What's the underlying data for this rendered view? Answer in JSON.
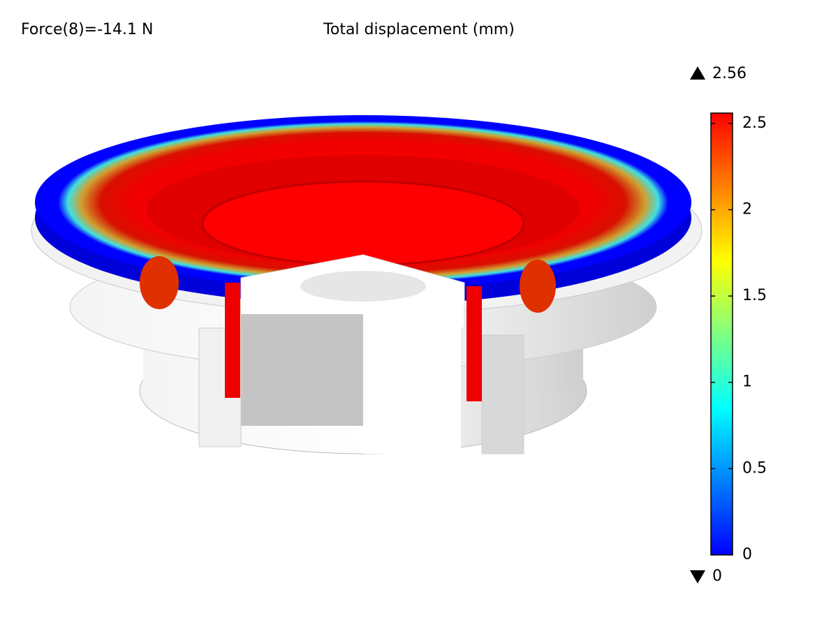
{
  "chart_data": {
    "type": "surface",
    "title": "Total displacement (mm)",
    "annotation": "Force(8)=-14.1 N",
    "colorbar": {
      "min": 0,
      "max": 2.56,
      "ticks": [
        0,
        0.5,
        1,
        1.5,
        2,
        2.5
      ],
      "colors": [
        "#0000ff",
        "#0080ff",
        "#00ffff",
        "#80ff80",
        "#ffff00",
        "#ff8000",
        "#ff0000"
      ]
    }
  }
}
